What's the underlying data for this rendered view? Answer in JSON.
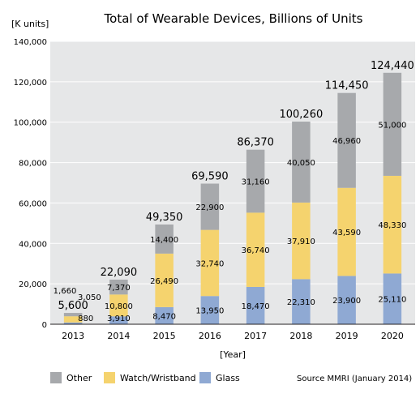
{
  "chart_data": {
    "type": "bar",
    "stacked": true,
    "title": "Total of Wearable Devices, Billions of Units",
    "ylabel": "[K units]",
    "xlabel": "[Year]",
    "ylim": [
      0,
      140000
    ],
    "yticks": [
      "0",
      "20,000",
      "40,000",
      "60,000",
      "80,000",
      "100,000",
      "120,000",
      "140,000"
    ],
    "grid": true,
    "legend_position": "bottom-left",
    "categories": [
      "2013",
      "2014",
      "2015",
      "2016",
      "2017",
      "2018",
      "2019",
      "2020"
    ],
    "series": [
      {
        "name": "Glass",
        "color": "#8fa9d3",
        "values": [
          880,
          3910,
          8470,
          13950,
          18470,
          22310,
          23900,
          25110
        ],
        "labels": [
          "880",
          "3,910",
          "8,470",
          "13,950",
          "18,470",
          "22,310",
          "23,900",
          "25,110"
        ]
      },
      {
        "name": "Watch/Wristband",
        "color": "#f5d36e",
        "values": [
          3050,
          10800,
          26490,
          32740,
          36740,
          37910,
          43590,
          48330
        ],
        "labels": [
          "3,050",
          "10,800",
          "26,490",
          "32,740",
          "36,740",
          "37,910",
          "43,590",
          "48,330"
        ]
      },
      {
        "name": "Other",
        "color": "#a7a9ac",
        "values": [
          1660,
          7370,
          14400,
          22900,
          31160,
          40050,
          46960,
          51000
        ],
        "labels": [
          "1,660",
          "7,370",
          "14,400",
          "22,900",
          "31,160",
          "40,050",
          "46,960",
          "51,000"
        ]
      }
    ],
    "totals": [
      5600,
      22090,
      49350,
      69590,
      86370,
      100260,
      114450,
      124440
    ],
    "total_labels": [
      "5,600",
      "22,090",
      "49,350",
      "69,590",
      "86,370",
      "100,260",
      "114,450",
      "124,440"
    ],
    "legend": [
      "Other",
      "Watch/Wristband",
      "Glass"
    ],
    "source": "Source MMRI (January 2014)"
  },
  "colors": {
    "plot_bg": "#e6e7e8",
    "grid": "#ffffff",
    "text": "#231f20"
  }
}
